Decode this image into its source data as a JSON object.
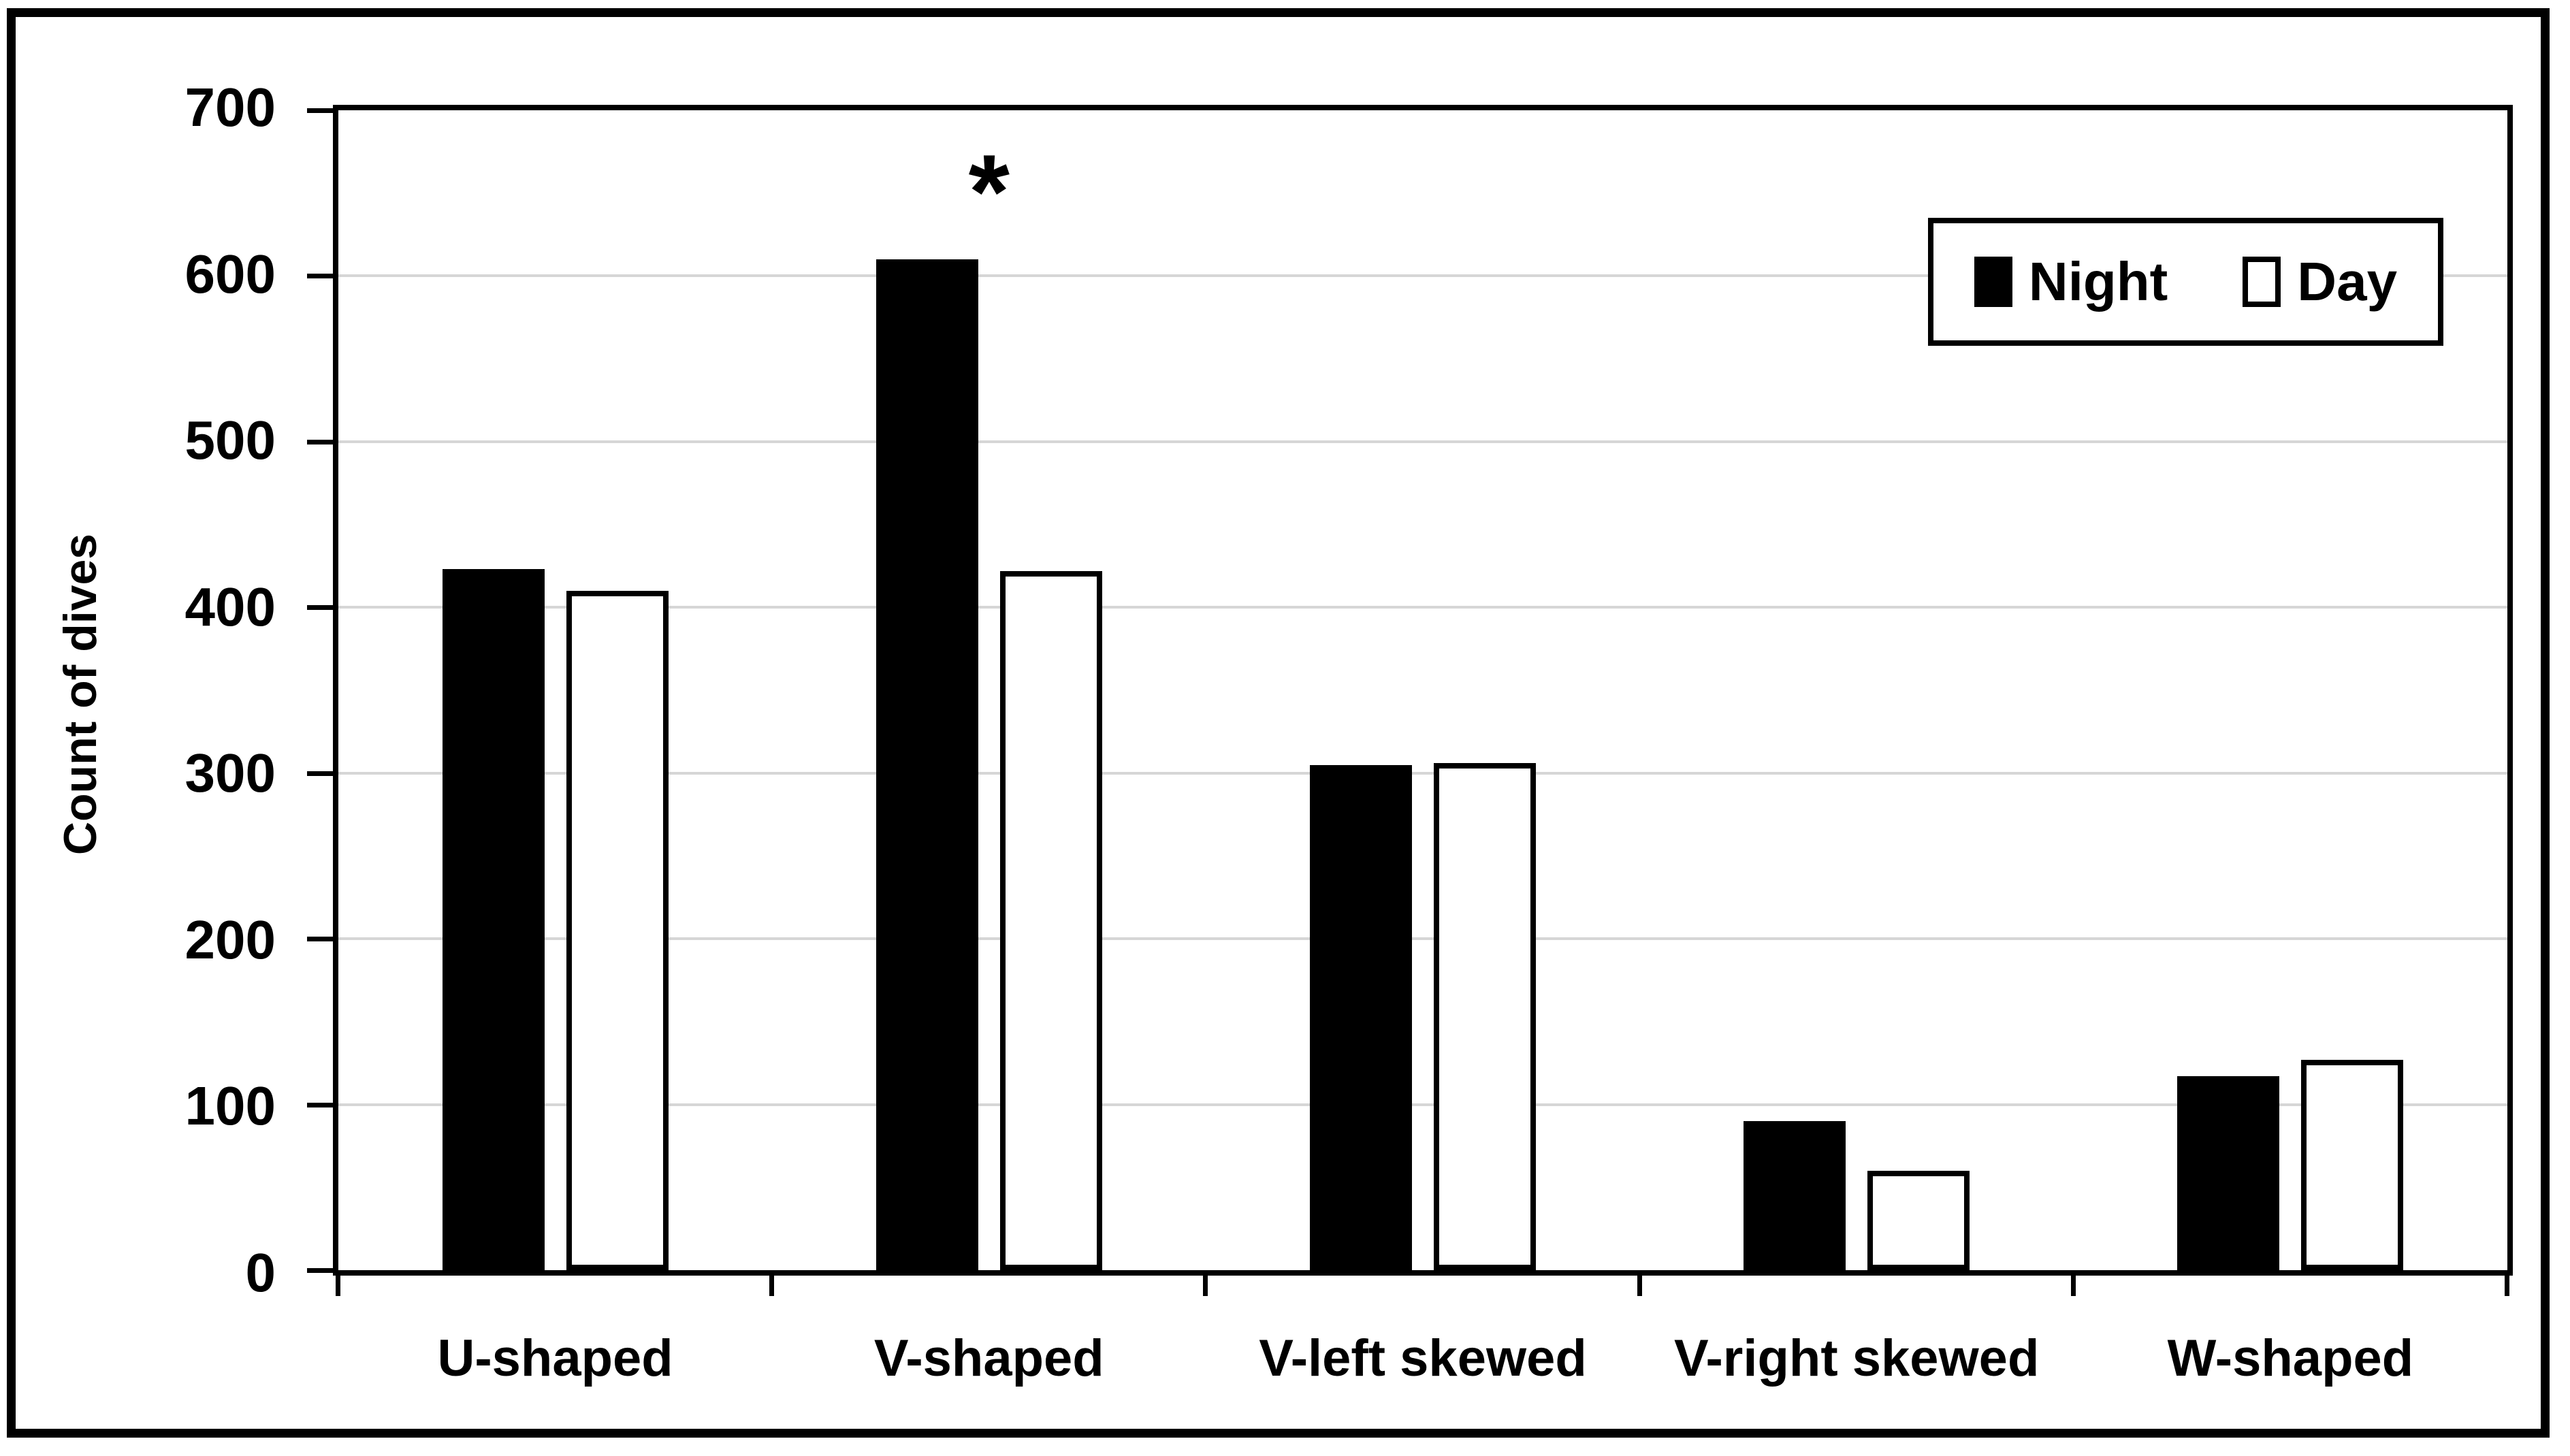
{
  "figure": {
    "y_axis_title": "Count of dives",
    "background": "#ffffff",
    "border_color": "#000000"
  },
  "legend": {
    "items": [
      {
        "label": "Night",
        "fill": "#000000",
        "outline": "#000000"
      },
      {
        "label": "Day",
        "fill": "#ffffff",
        "outline": "#000000"
      }
    ]
  },
  "chart_data": {
    "type": "bar",
    "title": "",
    "categories": [
      "U-shaped",
      "V-shaped",
      "V-left skewed",
      "V-right skewed",
      "W-shaped"
    ],
    "series": [
      {
        "name": "Night",
        "fill": "#000000",
        "values": [
          423,
          610,
          305,
          90,
          117
        ]
      },
      {
        "name": "Day",
        "fill": "#ffffff",
        "values": [
          410,
          422,
          306,
          60,
          127
        ]
      }
    ],
    "xlabel": "",
    "ylabel": "Count of dives",
    "ylim": [
      0,
      700
    ],
    "ytick_step": 100,
    "grid": true,
    "gridline_color": "#d6d6d6",
    "legend_position": "top-right",
    "annotations": [
      {
        "text": "*",
        "category_index": 1,
        "series": "Night"
      }
    ]
  }
}
